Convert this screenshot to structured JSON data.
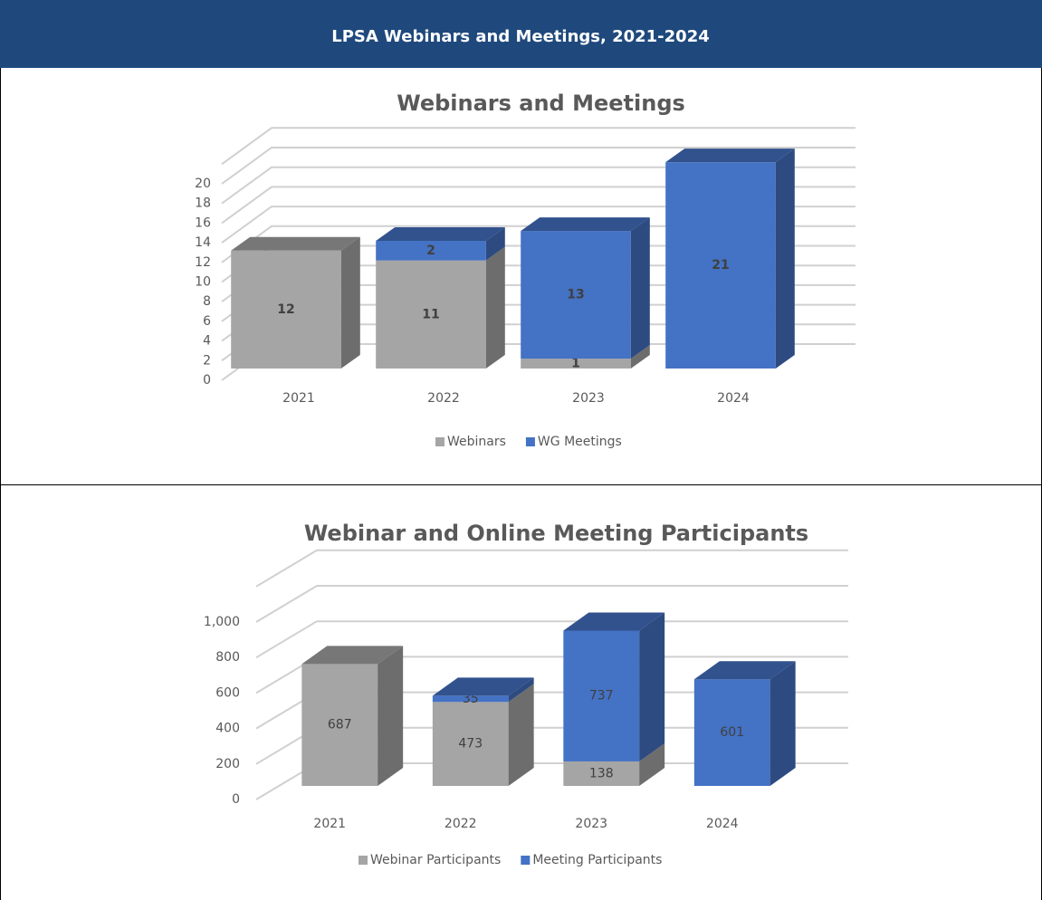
{
  "header": {
    "title": "LPSA Webinars and Meetings, 2021-2024"
  },
  "chart_data": [
    {
      "type": "stacked_bar_3d",
      "title": "Webinars and Meetings",
      "categories": [
        "2021",
        "2022",
        "2023",
        "2024"
      ],
      "series": [
        {
          "name": "Webinars",
          "color": "#a5a5a5",
          "values": [
            12,
            11,
            1,
            null
          ]
        },
        {
          "name": "WG Meetings",
          "color": "#4472c4",
          "values": [
            null,
            2,
            13,
            21
          ]
        }
      ],
      "ylim": [
        0,
        22
      ],
      "yticks": [
        0,
        2,
        4,
        6,
        8,
        10,
        12,
        14,
        16,
        18,
        20
      ],
      "grid": true,
      "legend": "bottom"
    },
    {
      "type": "stacked_bar_3d",
      "title": "Webinar and Online Meeting Participants",
      "categories": [
        "2021",
        "2022",
        "2023",
        "2024"
      ],
      "series": [
        {
          "name": "Webinar Participants",
          "color": "#a5a5a5",
          "values": [
            687,
            473,
            138,
            null
          ]
        },
        {
          "name": "Meeting Participants",
          "color": "#4472c4",
          "values": [
            null,
            35,
            737,
            601
          ]
        }
      ],
      "ylim": [
        0,
        1200
      ],
      "yticks": [
        0,
        200,
        400,
        600,
        800,
        {
          "value": 1000,
          "label": "1,000"
        }
      ],
      "grid": true,
      "legend": "bottom"
    }
  ]
}
